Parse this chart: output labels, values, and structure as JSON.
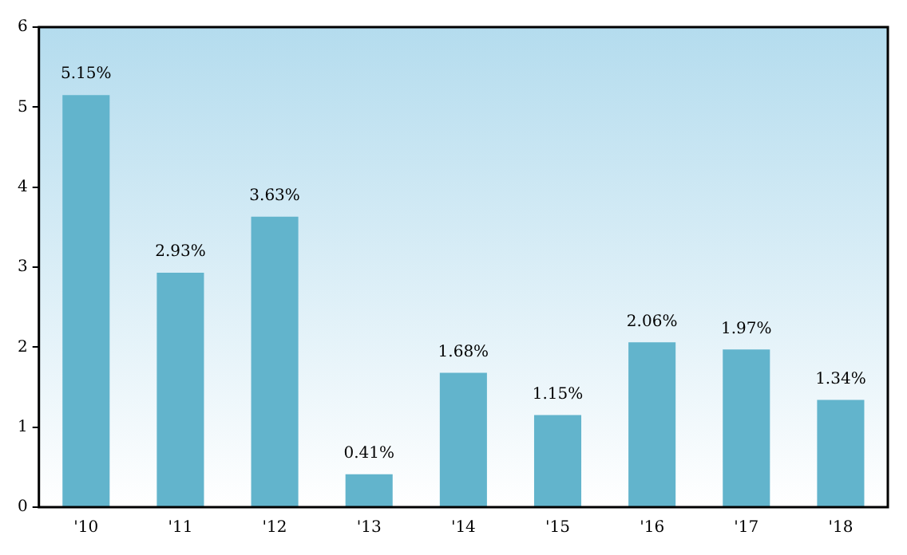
{
  "chart_data": {
    "type": "bar",
    "categories": [
      "'10",
      "'11",
      "'12",
      "'13",
      "'14",
      "'15",
      "'16",
      "'17",
      "'18"
    ],
    "values": [
      5.15,
      2.93,
      3.63,
      0.41,
      1.68,
      1.15,
      2.06,
      1.97,
      1.34
    ],
    "value_labels": [
      "5.15%",
      "2.93%",
      "3.63%",
      "0.41%",
      "1.68%",
      "1.15%",
      "2.06%",
      "1.97%",
      "1.34%"
    ],
    "color": "#62b4cc",
    "ylim": [
      0,
      6
    ],
    "yticks": [
      0,
      1,
      2,
      3,
      4,
      5,
      6
    ],
    "grid": false,
    "legend": false
  }
}
